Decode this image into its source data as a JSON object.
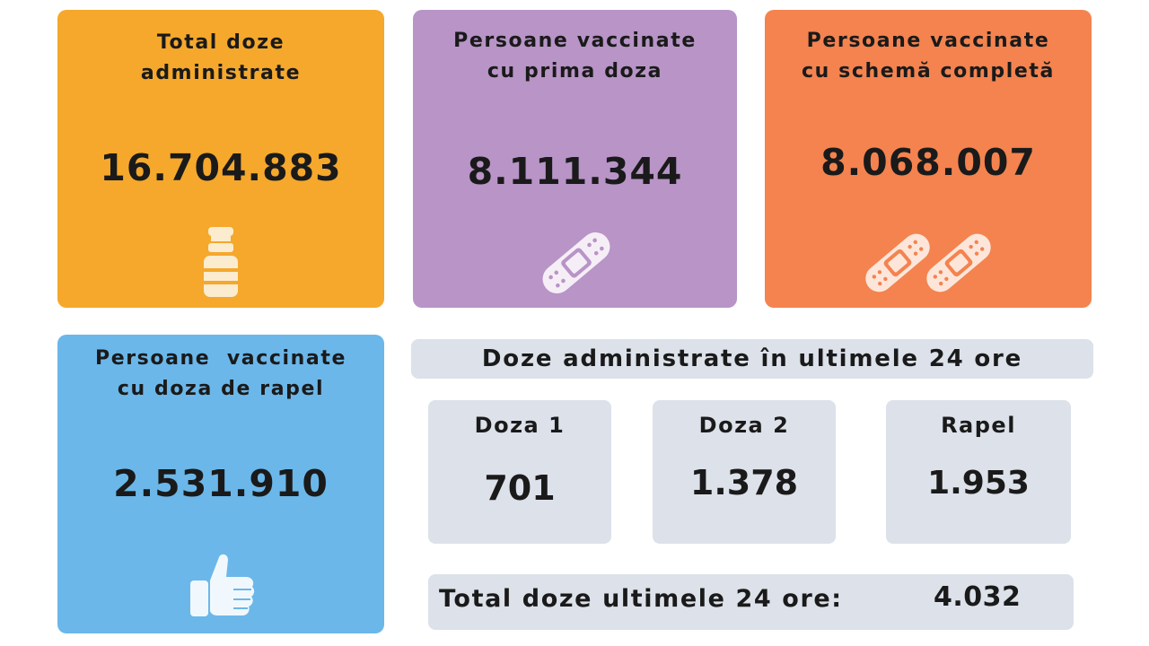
{
  "cards": {
    "total": {
      "title_line1": "Total doze",
      "title_line2": "administrate",
      "value": "16.704.883",
      "icon": "vaccine-vial-icon",
      "color": "#f5a82c"
    },
    "first_dose": {
      "title_line1": "Persoane vaccinate",
      "title_line2": "cu prima doza",
      "value": "8.111.344",
      "icon": "bandage-icon",
      "color": "#b894c7"
    },
    "complete": {
      "title_line1": "Persoane vaccinate",
      "title_line2": "cu schemă completă",
      "value": "8.068.007",
      "icon": "double-bandage-icon",
      "color": "#f4834f"
    },
    "booster": {
      "title_line1": "Persoane  vaccinate",
      "title_line2": "cu doza de rapel",
      "value": "2.531.910",
      "icon": "thumbs-up-icon",
      "color": "#6bb7ea"
    }
  },
  "last24": {
    "header": "Doze administrate în ultimele 24 ore",
    "items": [
      {
        "label": "Doza 1",
        "value": "701"
      },
      {
        "label": "Doza 2",
        "value": "1.378"
      },
      {
        "label": "Rapel",
        "value": "1.953"
      }
    ],
    "total_label": "Total doze ultimele 24 ore:",
    "total_value": "4.032",
    "panel_color": "#dce1ea"
  }
}
